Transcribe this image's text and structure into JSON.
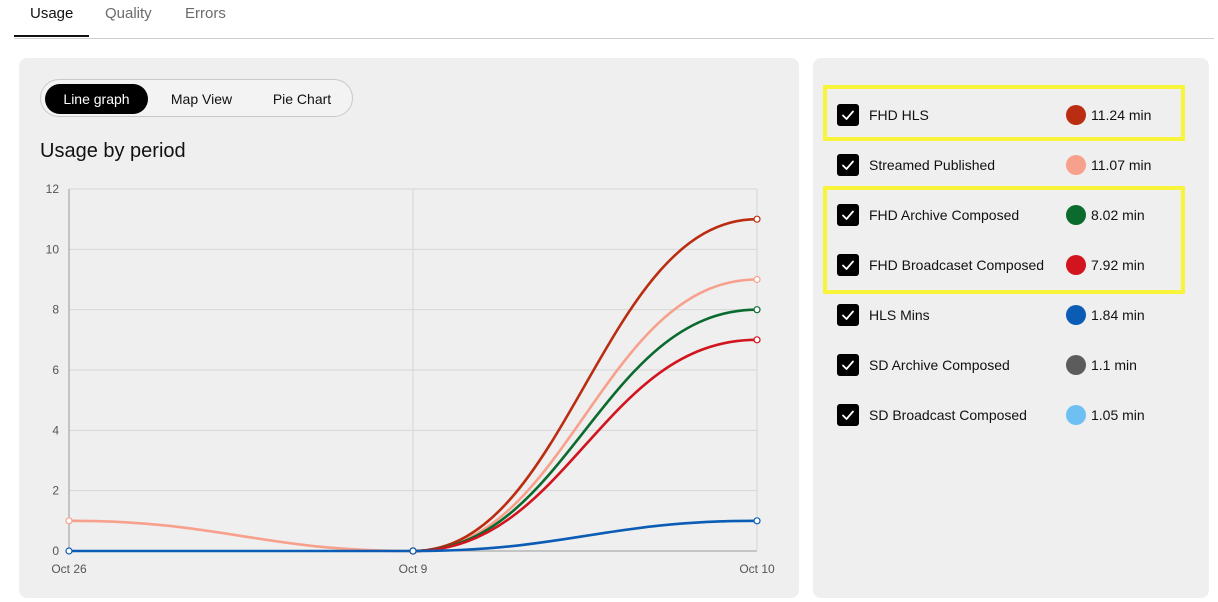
{
  "tabs": [
    {
      "label": "Usage",
      "active": true
    },
    {
      "label": "Quality",
      "active": false
    },
    {
      "label": "Errors",
      "active": false
    }
  ],
  "view_switch": {
    "options": [
      "Line graph",
      "Map View",
      "Pie Chart"
    ],
    "selected": "Line graph"
  },
  "chart_title": "Usage by period",
  "chart_data": {
    "type": "line",
    "x": [
      "Oct 26",
      "Oct 9",
      "Oct 10"
    ],
    "ylim": [
      0,
      12
    ],
    "yticks": [
      "0",
      "2",
      "4",
      "6",
      "8",
      "10",
      "12"
    ],
    "grid": true,
    "legend": "right panel",
    "series": [
      {
        "name": "FHD HLS",
        "color": "#bb2d10",
        "values": [
          null,
          0,
          11
        ]
      },
      {
        "name": "Streamed Published",
        "color": "#f7a08c",
        "values": [
          1,
          0,
          9
        ]
      },
      {
        "name": "FHD Archive Composed",
        "color": "#0b6b2e",
        "values": [
          null,
          0,
          8
        ]
      },
      {
        "name": "FHD Broadcaset Composed",
        "color": "#d2141e",
        "values": [
          null,
          0,
          7
        ]
      },
      {
        "name": "HLS Mins",
        "color": "#0b5cb5",
        "values": [
          0,
          0,
          1
        ]
      }
    ]
  },
  "legend": [
    {
      "label": "FHD HLS",
      "value": "11.24 min",
      "color": "#bb2d10",
      "checked": true
    },
    {
      "label": "Streamed Published",
      "value": "11.07 min",
      "color": "#f7a08c",
      "checked": true
    },
    {
      "label": "FHD Archive Composed",
      "value": "8.02 min",
      "color": "#0b6b2e",
      "checked": true
    },
    {
      "label": "FHD Broadcaset Composed",
      "value": "7.92 min",
      "color": "#d2141e",
      "checked": true
    },
    {
      "label": "HLS Mins",
      "value": "1.84 min",
      "color": "#0b5cb5",
      "checked": true
    },
    {
      "label": "SD Archive Composed",
      "value": "1.1 min",
      "color": "#5c5c5c",
      "checked": true
    },
    {
      "label": "SD Broadcast Composed",
      "value": "1.05 min",
      "color": "#6ec0f2",
      "checked": true
    }
  ],
  "highlight_color": "#f7f43a"
}
